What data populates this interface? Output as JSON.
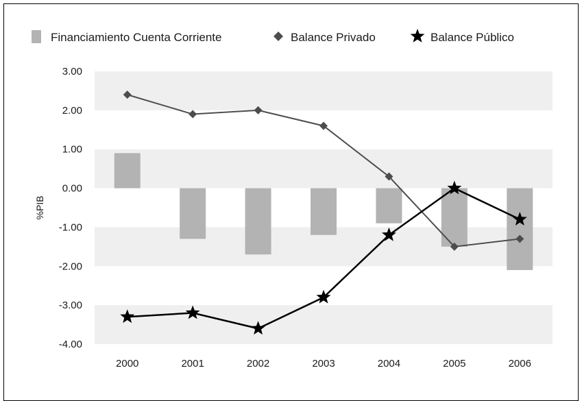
{
  "chart_data": {
    "type": "bar",
    "title": "",
    "xlabel": "",
    "ylabel": "%PIB",
    "ylim": [
      -4,
      3
    ],
    "yticks": [
      "3.00",
      "2.00",
      "1.00",
      "0.00",
      "-1.00",
      "-2.00",
      "-3.00",
      "-4.00"
    ],
    "categories": [
      "2000",
      "2001",
      "2002",
      "2003",
      "2004",
      "2005",
      "2006"
    ],
    "legend_position": "top",
    "series": [
      {
        "name": "Financiamiento Cuenta Corriente",
        "type": "bar",
        "marker": "square",
        "color": "#b3b3b3",
        "values": [
          0.9,
          -1.3,
          -1.7,
          -1.2,
          -0.9,
          -1.5,
          -2.1
        ]
      },
      {
        "name": "Balance Privado",
        "type": "line",
        "marker": "diamond",
        "color": "#4d4d4d",
        "values": [
          2.4,
          1.9,
          2.0,
          1.6,
          0.3,
          -1.5,
          -1.3
        ]
      },
      {
        "name": "Balance Público",
        "type": "line",
        "marker": "star",
        "color": "#000000",
        "values": [
          -3.3,
          -3.2,
          -3.6,
          -2.8,
          -1.2,
          0.0,
          -0.8
        ]
      }
    ],
    "background_bands": "alternating light-gray horizontal bands",
    "colors": {
      "band": "#efefef",
      "bar": "#b3b3b3",
      "private_line": "#4d4d4d",
      "public_line": "#000000"
    }
  }
}
